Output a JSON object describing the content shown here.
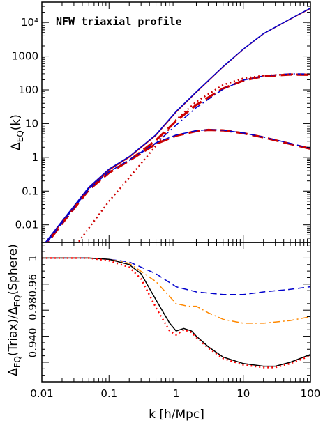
{
  "chart_data": [
    {
      "type": "line",
      "title": "NFW triaxial profile",
      "xlabel": "k [h/Mpc]",
      "ylabel": "Δ_EQ(k)",
      "xscale": "log",
      "yscale": "log",
      "xlim": [
        0.01,
        100
      ],
      "ylim": [
        0.003,
        40000
      ],
      "xticks": [
        "0.01",
        "0.1",
        "1",
        "10",
        "100"
      ],
      "yticks": [
        "0.01",
        "0.1",
        "1",
        "10",
        "100",
        "1000",
        "10⁴"
      ],
      "legend": "none",
      "series": [
        {
          "color": "#cc0000",
          "style": "solid",
          "x": [
            0.01,
            0.02,
            0.05,
            0.1,
            0.2,
            0.5,
            1,
            2,
            5,
            10,
            20,
            50,
            100
          ],
          "y": [
            0.002,
            0.012,
            0.12,
            0.42,
            1.0,
            4.5,
            22,
            85,
            480,
            1600,
            4600,
            12500,
            26000
          ]
        },
        {
          "color": "#0000cc",
          "style": "solid",
          "x": [
            0.01,
            0.02,
            0.05,
            0.1,
            0.2,
            0.5,
            1,
            2,
            5,
            10,
            20,
            50,
            100
          ],
          "y": [
            0.0022,
            0.013,
            0.13,
            0.45,
            1.05,
            4.7,
            23,
            88,
            490,
            1620,
            4650,
            12700,
            26500
          ]
        },
        {
          "color": "#cc0000",
          "style": "long-dash",
          "x": [
            0.01,
            0.02,
            0.05,
            0.1,
            0.2,
            0.5,
            1,
            2,
            5,
            10,
            20,
            50,
            100
          ],
          "y": [
            0.0018,
            0.011,
            0.11,
            0.35,
            0.8,
            3.2,
            12,
            36,
            110,
            190,
            255,
            285,
            280
          ]
        },
        {
          "color": "#0000cc",
          "style": "dash-dot",
          "x": [
            0.01,
            0.02,
            0.05,
            0.1,
            0.2,
            0.5,
            1,
            2,
            5,
            10,
            20,
            50,
            100
          ],
          "y": [
            0.002,
            0.012,
            0.12,
            0.38,
            0.8,
            2.6,
            9,
            30,
            105,
            195,
            260,
            300,
            295
          ]
        },
        {
          "color": "#cc0000",
          "style": "dot",
          "x": [
            0.03,
            0.05,
            0.1,
            0.2,
            0.5,
            1,
            2,
            5,
            10,
            20,
            50,
            100
          ],
          "y": [
            0.002,
            0.008,
            0.05,
            0.25,
            2.2,
            13,
            45,
            140,
            220,
            265,
            290,
            285
          ]
        },
        {
          "color": "#cc0000",
          "style": "long-dash",
          "x": [
            0.01,
            0.02,
            0.05,
            0.1,
            0.2,
            0.5,
            1,
            2,
            3,
            5,
            10,
            20,
            50,
            100
          ],
          "y": [
            0.0018,
            0.011,
            0.11,
            0.35,
            0.8,
            2.5,
            4.4,
            6.0,
            6.5,
            6.3,
            5.2,
            3.9,
            2.5,
            1.8
          ]
        },
        {
          "color": "#0000cc",
          "style": "dash",
          "x": [
            0.01,
            0.02,
            0.05,
            0.1,
            0.2,
            0.5,
            1,
            2,
            3,
            5,
            10,
            20,
            50,
            100
          ],
          "y": [
            0.0019,
            0.0115,
            0.115,
            0.37,
            0.85,
            2.7,
            4.6,
            6.2,
            6.6,
            6.4,
            5.3,
            4.0,
            2.6,
            1.85
          ]
        }
      ]
    },
    {
      "type": "line",
      "xlabel": "k [h/Mpc]",
      "ylabel": "Δ_EQ(Triax)/Δ_EQ(Sphere)",
      "xscale": "log",
      "xlim": [
        0.01,
        100
      ],
      "ylim": [
        0.905,
        1.012
      ],
      "xticks": [
        "0.01",
        "0.1",
        "1",
        "10",
        "100"
      ],
      "yticks": [
        "1",
        "0.98",
        "0.96",
        "0.94"
      ],
      "ytick_labels_printed": [
        "1",
        "0.980.96",
        "0.940"
      ],
      "legend": "none",
      "series": [
        {
          "color": "#0000cc",
          "style": "dash",
          "x": [
            0.01,
            0.05,
            0.1,
            0.2,
            0.5,
            1,
            2,
            5,
            10,
            20,
            50,
            100
          ],
          "y": [
            1.0,
            1.0,
            0.999,
            0.997,
            0.988,
            0.978,
            0.974,
            0.972,
            0.972,
            0.974,
            0.976,
            0.978
          ]
        },
        {
          "color": "#ff8800",
          "style": "dash-dot",
          "x": [
            0.01,
            0.05,
            0.1,
            0.2,
            0.5,
            1,
            1.5,
            2,
            3,
            5,
            10,
            20,
            50,
            100
          ],
          "y": [
            1.0,
            1.0,
            0.999,
            0.996,
            0.982,
            0.965,
            0.963,
            0.963,
            0.958,
            0.953,
            0.95,
            0.95,
            0.952,
            0.955
          ]
        },
        {
          "color": "#000000",
          "style": "solid",
          "x": [
            0.01,
            0.05,
            0.1,
            0.2,
            0.3,
            0.5,
            0.8,
            1,
            1.3,
            1.7,
            2,
            3,
            5,
            10,
            20,
            30,
            50,
            100
          ],
          "y": [
            1.0,
            1.0,
            0.999,
            0.995,
            0.988,
            0.968,
            0.95,
            0.944,
            0.946,
            0.944,
            0.94,
            0.932,
            0.924,
            0.919,
            0.917,
            0.917,
            0.92,
            0.926
          ]
        },
        {
          "color": "#ff0000",
          "style": "dot",
          "x": [
            0.01,
            0.05,
            0.1,
            0.2,
            0.3,
            0.5,
            0.8,
            1,
            1.3,
            1.7,
            2,
            3,
            5,
            10,
            20,
            30,
            50,
            100
          ],
          "y": [
            1.0,
            1.0,
            0.998,
            0.993,
            0.984,
            0.962,
            0.944,
            0.941,
            0.945,
            0.943,
            0.939,
            0.931,
            0.923,
            0.918,
            0.916,
            0.916,
            0.919,
            0.925
          ]
        }
      ]
    }
  ]
}
